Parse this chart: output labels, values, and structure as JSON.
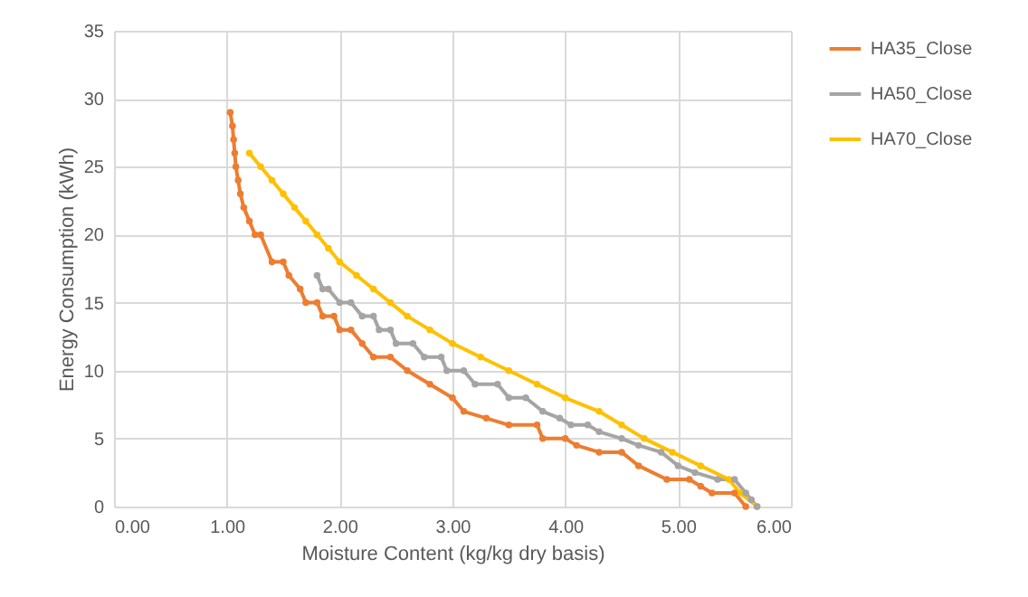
{
  "chart_data": {
    "type": "line",
    "xlabel": "Moisture Content (kg/kg dry basis)",
    "ylabel": "Energy Consumption (kWh)",
    "xlim": [
      0,
      6
    ],
    "xticks": [
      {
        "value": 0,
        "label": "0.00"
      },
      {
        "value": 1,
        "label": "1.00"
      },
      {
        "value": 2,
        "label": "2.00"
      },
      {
        "value": 3,
        "label": "3.00"
      },
      {
        "value": 4,
        "label": "4.00"
      },
      {
        "value": 5,
        "label": "5.00"
      },
      {
        "value": 6,
        "label": "6.00"
      }
    ],
    "ylim": [
      0,
      35
    ],
    "yticks": [
      0,
      5,
      10,
      15,
      20,
      25,
      30,
      35
    ],
    "grid": true,
    "legend": "right",
    "marker": "circle",
    "line_style": "solid",
    "series": [
      {
        "name": "HA35_Close",
        "color": "#ed7d31",
        "x": [
          1.03,
          1.05,
          1.06,
          1.07,
          1.08,
          1.1,
          1.12,
          1.15,
          1.2,
          1.25,
          1.3,
          1.4,
          1.5,
          1.55,
          1.65,
          1.7,
          1.8,
          1.85,
          1.95,
          2.0,
          2.1,
          2.2,
          2.3,
          2.45,
          2.6,
          2.8,
          3.0,
          3.1,
          3.3,
          3.5,
          3.75,
          3.8,
          4.0,
          4.1,
          4.3,
          4.5,
          4.65,
          4.9,
          5.1,
          5.2,
          5.3,
          5.5,
          5.6
        ],
        "values": [
          29,
          28,
          27,
          26,
          25,
          24,
          23,
          22,
          21,
          20,
          20,
          18,
          18,
          17,
          16,
          15,
          15,
          14,
          14,
          13,
          13,
          12,
          11,
          11,
          10,
          9,
          8,
          7,
          6.5,
          6,
          6,
          5,
          5,
          4.5,
          4,
          4,
          3,
          2,
          2,
          1.5,
          1,
          1,
          0
        ]
      },
      {
        "name": "HA50_Close",
        "color": "#a5a5a5",
        "x": [
          1.8,
          1.85,
          1.9,
          2.0,
          2.1,
          2.2,
          2.3,
          2.35,
          2.45,
          2.5,
          2.65,
          2.75,
          2.9,
          2.95,
          3.1,
          3.2,
          3.4,
          3.5,
          3.65,
          3.8,
          3.95,
          4.05,
          4.2,
          4.3,
          4.5,
          4.65,
          4.85,
          5.0,
          5.15,
          5.35,
          5.5,
          5.6,
          5.65,
          5.7
        ],
        "values": [
          17,
          16,
          16,
          15,
          15,
          14,
          14,
          13,
          13,
          12,
          12,
          11,
          11,
          10,
          10,
          9,
          9,
          8,
          8,
          7,
          6.5,
          6,
          6,
          5.5,
          5,
          4.5,
          4,
          3,
          2.5,
          2,
          2,
          1,
          0.5,
          0
        ]
      },
      {
        "name": "HA70_Close",
        "color": "#ffc000",
        "x": [
          1.2,
          1.3,
          1.4,
          1.5,
          1.6,
          1.7,
          1.8,
          1.9,
          2.0,
          2.15,
          2.3,
          2.45,
          2.6,
          2.8,
          3.0,
          3.25,
          3.5,
          3.75,
          4.0,
          4.3,
          4.5,
          4.7,
          4.95,
          5.2,
          5.45,
          5.55,
          5.7
        ],
        "values": [
          26,
          25,
          24,
          23,
          22,
          21,
          20,
          19,
          18,
          17,
          16,
          15,
          14,
          13,
          12,
          11,
          10,
          9,
          8,
          7,
          6,
          5,
          4,
          3,
          2,
          1,
          0
        ]
      }
    ]
  }
}
